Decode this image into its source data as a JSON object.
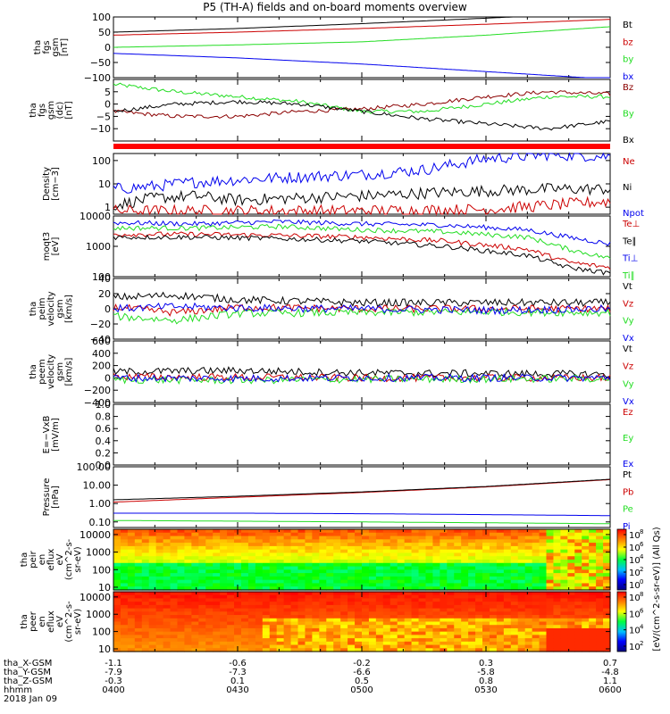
{
  "title": "P5 (TH-A) fields and on-board moments overview",
  "colors": {
    "black": "#000000",
    "red": "#cc0000",
    "green": "#22dd22",
    "blue": "#0000ee",
    "darkred": "#8b0000"
  },
  "chart_data": [
    {
      "type": "line",
      "ylabel": [
        "tha",
        "fgs",
        "gsm",
        "[nT]"
      ],
      "ylim": [
        -100,
        100
      ],
      "yticks": [
        "100",
        "50",
        "0",
        "−50",
        "−100"
      ],
      "ytick_values": [
        100,
        50,
        0,
        -50,
        -100
      ],
      "legend": [
        {
          "name": "Bt",
          "color": "#000000"
        },
        {
          "name": "bz",
          "color": "#cc0000"
        },
        {
          "name": "by",
          "color": "#22dd22"
        },
        {
          "name": "bx",
          "color": "#0000ee"
        }
      ],
      "series": [
        {
          "name": "Bt",
          "color": "#000000",
          "x": [
            0,
            30,
            60,
            90,
            120
          ],
          "y": [
            50,
            62,
            78,
            96,
            115
          ]
        },
        {
          "name": "bz",
          "color": "#cc0000",
          "x": [
            0,
            30,
            60,
            90,
            120
          ],
          "y": [
            40,
            50,
            62,
            76,
            92
          ]
        },
        {
          "name": "by",
          "color": "#22dd22",
          "x": [
            0,
            30,
            60,
            90,
            120
          ],
          "y": [
            0,
            8,
            18,
            40,
            68
          ]
        },
        {
          "name": "bx",
          "color": "#0000ee",
          "x": [
            0,
            30,
            60,
            90,
            120
          ],
          "y": [
            -20,
            -35,
            -55,
            -80,
            -105
          ]
        }
      ]
    },
    {
      "type": "line",
      "ylabel": [
        "tha",
        "fgs",
        "gsm",
        "(dc)",
        "[nT]"
      ],
      "ylim": [
        -15,
        10
      ],
      "yticks": [
        "5",
        "0",
        "−5",
        "−10"
      ],
      "ytick_values": [
        5,
        0,
        -5,
        -10
      ],
      "legend": [
        {
          "name": "Bz",
          "color": "#8b0000"
        },
        {
          "name": "By",
          "color": "#22dd22"
        },
        {
          "name": "Bx",
          "color": "#000000"
        }
      ],
      "series": [
        {
          "name": "By",
          "color": "#22dd22",
          "x": [
            0,
            15,
            30,
            45,
            60,
            75,
            90,
            105,
            120
          ],
          "y": [
            8,
            5,
            3,
            1,
            -3,
            -3,
            0,
            3,
            3
          ]
        },
        {
          "name": "Bz",
          "color": "#8b0000",
          "x": [
            0,
            15,
            30,
            45,
            60,
            75,
            90,
            105,
            120
          ],
          "y": [
            -3,
            -5,
            -5,
            -3,
            -2,
            0,
            3,
            5,
            4
          ]
        },
        {
          "name": "Bx",
          "color": "#000000",
          "x": [
            0,
            15,
            30,
            45,
            60,
            75,
            90,
            105,
            120
          ],
          "y": [
            -3,
            0,
            1,
            0,
            -3,
            -6,
            -8,
            -10,
            -7
          ]
        }
      ]
    },
    {
      "type": "line",
      "ylabel": [
        "Density",
        "[cm−3]"
      ],
      "yscale": "log",
      "ylim": [
        0.5,
        200
      ],
      "yticks": [
        "100",
        "10",
        "1"
      ],
      "ytick_values": [
        100,
        10,
        1
      ],
      "legend": [
        {
          "name": "Ne",
          "color": "#cc0000"
        },
        {
          "name": "Ni",
          "color": "#000000"
        },
        {
          "name": "Npot",
          "color": "#0000ee"
        }
      ],
      "series": [
        {
          "name": "Npot",
          "color": "#0000ee",
          "x": [
            0,
            10,
            20,
            30,
            45,
            60,
            75,
            90,
            105,
            120
          ],
          "y": [
            6,
            8,
            12,
            15,
            20,
            25,
            40,
            120,
            180,
            150
          ]
        },
        {
          "name": "Ni",
          "color": "#000000",
          "x": [
            0,
            10,
            20,
            30,
            45,
            60,
            75,
            90,
            105,
            120
          ],
          "y": [
            1.2,
            2.5,
            3,
            2,
            2.5,
            3,
            4,
            5,
            6,
            6
          ]
        },
        {
          "name": "Ne",
          "color": "#cc0000",
          "x": [
            0,
            30,
            60,
            90,
            105,
            120
          ],
          "y": [
            0.7,
            0.7,
            0.7,
            0.8,
            1.2,
            1.8
          ]
        }
      ]
    },
    {
      "type": "line",
      "ylabel": [
        "moqt3",
        "[eV]"
      ],
      "yscale": "log",
      "ylim": [
        100,
        10000
      ],
      "yticks": [
        "10000",
        "1000",
        "100"
      ],
      "ytick_values": [
        10000,
        1000,
        100
      ],
      "legend": [
        {
          "name": "Te⊥",
          "color": "#cc0000"
        },
        {
          "name": "Te∥",
          "color": "#000000"
        },
        {
          "name": "Ti⊥",
          "color": "#0000ee"
        },
        {
          "name": "Ti∥",
          "color": "#22dd22"
        }
      ],
      "series": [
        {
          "name": "Ti⊥",
          "color": "#0000ee",
          "x": [
            0,
            20,
            40,
            60,
            80,
            100,
            110,
            120
          ],
          "y": [
            6000,
            5500,
            6500,
            5500,
            5000,
            3500,
            2000,
            1200
          ]
        },
        {
          "name": "Ti∥",
          "color": "#22dd22",
          "x": [
            0,
            20,
            40,
            60,
            80,
            100,
            110,
            120
          ],
          "y": [
            4000,
            4000,
            4500,
            3500,
            3000,
            2000,
            800,
            400
          ]
        },
        {
          "name": "Te⊥",
          "color": "#cc0000",
          "x": [
            0,
            20,
            40,
            60,
            80,
            100,
            110,
            120
          ],
          "y": [
            2500,
            2500,
            2300,
            2000,
            1500,
            800,
            300,
            200
          ]
        },
        {
          "name": "Te∥",
          "color": "#000000",
          "x": [
            0,
            20,
            40,
            60,
            80,
            100,
            110,
            120
          ],
          "y": [
            2000,
            2000,
            1800,
            1500,
            1000,
            500,
            200,
            130
          ]
        }
      ]
    },
    {
      "type": "line",
      "ylabel": [
        "tha",
        "peim",
        "velocity",
        "gsm",
        "[km/s]"
      ],
      "ylim": [
        -40,
        40
      ],
      "yticks": [
        "40",
        "20",
        "0",
        "−20",
        "−40"
      ],
      "ytick_values": [
        40,
        20,
        0,
        -20,
        -40
      ],
      "legend": [
        {
          "name": "Vt",
          "color": "#000000"
        },
        {
          "name": "Vz",
          "color": "#cc0000"
        },
        {
          "name": "Vy",
          "color": "#22dd22"
        },
        {
          "name": "Vx",
          "color": "#0000ee"
        }
      ],
      "series": [
        {
          "name": "Vt",
          "color": "#000000",
          "x": [
            0,
            15,
            30,
            60,
            90,
            120
          ],
          "y": [
            15,
            18,
            12,
            8,
            8,
            8
          ]
        },
        {
          "name": "Vz",
          "color": "#cc0000",
          "x": [
            0,
            15,
            30,
            60,
            90,
            120
          ],
          "y": [
            2,
            -5,
            2,
            0,
            0,
            0
          ]
        },
        {
          "name": "Vy",
          "color": "#22dd22",
          "x": [
            0,
            15,
            30,
            60,
            90,
            120
          ],
          "y": [
            -10,
            -15,
            -6,
            -5,
            -4,
            -5
          ]
        },
        {
          "name": "Vx",
          "color": "#0000ee",
          "x": [
            0,
            15,
            30,
            60,
            90,
            120
          ],
          "y": [
            0,
            3,
            1,
            0,
            -2,
            0
          ]
        }
      ]
    },
    {
      "type": "line",
      "ylabel": [
        "tha",
        "peem",
        "velocity",
        "gsm",
        "[km/s]"
      ],
      "ylim": [
        -400,
        600
      ],
      "yticks": [
        "600",
        "400",
        "200",
        "0",
        "−200",
        "−400"
      ],
      "ytick_values": [
        600,
        400,
        200,
        0,
        -200,
        -400
      ],
      "legend": [
        {
          "name": "Vt",
          "color": "#000000"
        },
        {
          "name": "Vz",
          "color": "#cc0000"
        },
        {
          "name": "Vy",
          "color": "#22dd22"
        },
        {
          "name": "Vx",
          "color": "#0000ee"
        }
      ],
      "series": [
        {
          "name": "Vt",
          "color": "#000000",
          "x": [
            0,
            30,
            60,
            90,
            120
          ],
          "y": [
            100,
            120,
            80,
            70,
            60
          ]
        },
        {
          "name": "Vz",
          "color": "#cc0000",
          "x": [
            0,
            30,
            60,
            90,
            120
          ],
          "y": [
            20,
            10,
            0,
            0,
            0
          ]
        },
        {
          "name": "Vy",
          "color": "#22dd22",
          "x": [
            0,
            30,
            60,
            90,
            120
          ],
          "y": [
            -30,
            -40,
            -20,
            -20,
            -10
          ]
        },
        {
          "name": "Vx",
          "color": "#0000ee",
          "x": [
            0,
            30,
            60,
            90,
            120
          ],
          "y": [
            0,
            -10,
            0,
            0,
            0
          ]
        }
      ]
    },
    {
      "type": "line",
      "ylabel": [
        "E=−VxB",
        "[mV/m]"
      ],
      "ylim": [
        0,
        1
      ],
      "yticks": [
        "1.0",
        "0.8",
        "0.6",
        "0.4",
        "0.2",
        "0.0"
      ],
      "ytick_values": [
        1,
        0.8,
        0.6,
        0.4,
        0.2,
        0
      ],
      "legend": [
        {
          "name": "Ez",
          "color": "#cc0000"
        },
        {
          "name": "Ey",
          "color": "#22dd22"
        },
        {
          "name": "Ex",
          "color": "#0000ee"
        }
      ],
      "series": []
    },
    {
      "type": "line",
      "ylabel": [
        "Pressure",
        "[nPa]"
      ],
      "yscale": "log",
      "ylim": [
        0.05,
        100
      ],
      "yticks": [
        "100.00",
        "10.00",
        "1.00",
        "0.10"
      ],
      "ytick_values": [
        100,
        10,
        1,
        0.1
      ],
      "legend": [
        {
          "name": "Pt",
          "color": "#000000"
        },
        {
          "name": "Pb",
          "color": "#cc0000"
        },
        {
          "name": "Pe",
          "color": "#22dd22"
        },
        {
          "name": "Pi",
          "color": "#0000ee"
        }
      ],
      "series": [
        {
          "name": "Pb",
          "color": "#cc0000",
          "x": [
            0,
            30,
            60,
            90,
            120
          ],
          "y": [
            1.2,
            2.2,
            4,
            8,
            20
          ]
        },
        {
          "name": "Pt",
          "color": "#000000",
          "x": [
            0,
            30,
            60,
            90,
            120
          ],
          "y": [
            1.6,
            2.5,
            4.3,
            8.5,
            21
          ]
        },
        {
          "name": "Pi",
          "color": "#0000ee",
          "x": [
            0,
            30,
            60,
            90,
            120
          ],
          "y": [
            0.3,
            0.3,
            0.28,
            0.25,
            0.22
          ]
        },
        {
          "name": "Pe",
          "color": "#22dd22",
          "x": [
            0,
            30,
            60,
            90,
            120
          ],
          "y": [
            0.12,
            0.11,
            0.1,
            0.09,
            0.08
          ]
        }
      ]
    },
    {
      "type": "heatmap",
      "ylabel": [
        "tha",
        "peir",
        "en",
        "eflux",
        "eV",
        "(cm^2-s-",
        "sr-eV)"
      ],
      "yscale": "log",
      "ylim": [
        7,
        20000
      ],
      "yticks": [
        "10000",
        "1000",
        "100",
        "10"
      ],
      "ytick_values": [
        10000,
        1000,
        100,
        10
      ],
      "colorbar": {
        "ticks": [
          "10^8",
          "10^6",
          "10^4",
          "10^2",
          "10^0"
        ],
        "range": [
          0,
          8
        ]
      }
    },
    {
      "type": "heatmap",
      "ylabel": [
        "tha",
        "peer",
        "en",
        "eflux",
        "eV",
        "(cm^2-s-",
        "sr-eV)"
      ],
      "yscale": "log",
      "ylim": [
        7,
        20000
      ],
      "yticks": [
        "10000",
        "1000",
        "100",
        "10"
      ],
      "ytick_values": [
        10000,
        1000,
        100,
        10
      ],
      "colorbar": {
        "ticks": [
          "10^8",
          "10^6",
          "10^4",
          "10^2"
        ],
        "range": [
          1,
          8
        ]
      }
    }
  ],
  "colorbar_label": "[eV/(cm^2-s-sr-eV)] (All Qs)",
  "x_axis": {
    "rows": [
      {
        "label": "tha_X-GSM",
        "values": [
          "-1.1",
          "-0.6",
          "-0.2",
          "0.3",
          "0.7"
        ]
      },
      {
        "label": "tha_Y-GSM",
        "values": [
          "-7.9",
          "-7.3",
          "-6.6",
          "-5.8",
          "-4.8"
        ]
      },
      {
        "label": "tha_Z-GSM",
        "values": [
          "-0.3",
          "0.1",
          "0.5",
          "0.8",
          "1.1"
        ]
      },
      {
        "label": "hhmm",
        "values": [
          "0400",
          "0430",
          "0500",
          "0530",
          "0600"
        ]
      }
    ],
    "date": "2018 Jan 09"
  }
}
